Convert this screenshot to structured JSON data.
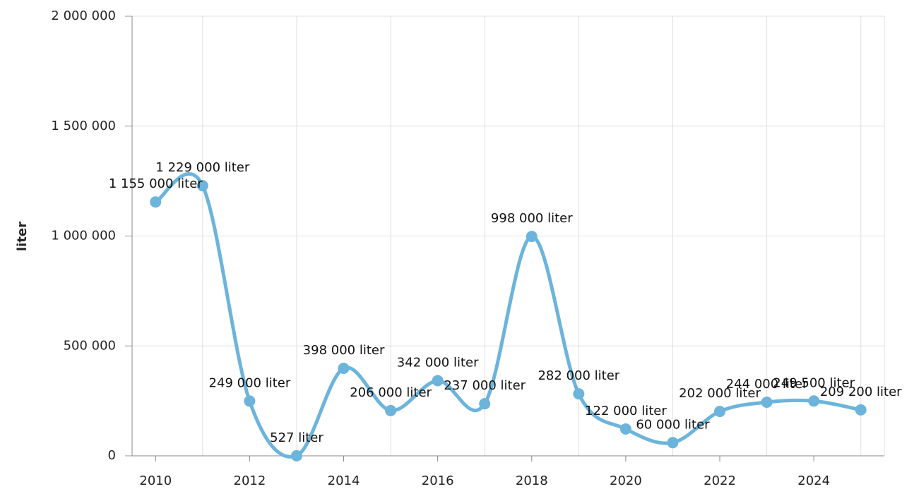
{
  "chart_data": {
    "type": "line",
    "y_label": "liter",
    "x": [
      2010,
      2011,
      2012,
      2013,
      2014,
      2015,
      2016,
      2017,
      2018,
      2019,
      2020,
      2021,
      2022,
      2023,
      2024,
      2025
    ],
    "series": [
      {
        "name": "liter",
        "color": "#6cb4dc",
        "values": [
          1155000,
          1229000,
          249000,
          527,
          398000,
          206000,
          342000,
          237000,
          998000,
          282000,
          122000,
          60000,
          202000,
          244000,
          249500,
          209200
        ],
        "value_labels": [
          "1 155 000 liter",
          "1 229 000 liter",
          "249 000 liter",
          "527 liter",
          "398 000 liter",
          "206 000 liter",
          "342 000 liter",
          "237 000 liter",
          "998 000 liter",
          "282 000 liter",
          "122 000 liter",
          "60 000 liter",
          "202 000 liter",
          "244 000 liter",
          "249 500 liter",
          "209 200 liter"
        ]
      }
    ],
    "xlim": [
      2009.5,
      2025.5
    ],
    "xticks": [
      2010,
      2012,
      2014,
      2016,
      2018,
      2020,
      2022,
      2024
    ],
    "ylim": [
      0,
      2000000
    ],
    "yticks": [
      0,
      {
        "value": 500000,
        "label": "500 000"
      },
      {
        "value": 1000000,
        "label": "1 000 000"
      },
      {
        "value": 1500000,
        "label": "1 500 000"
      },
      {
        "value": 2000000,
        "label": "2 000 000"
      }
    ],
    "grid": true
  }
}
